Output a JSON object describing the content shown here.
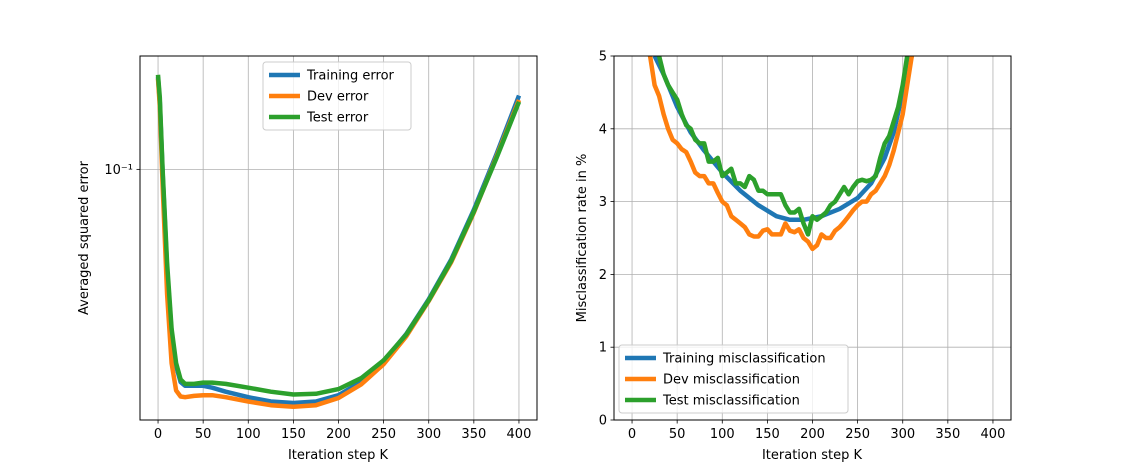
{
  "chart_data": [
    {
      "type": "line",
      "xlabel": "Iteration step K",
      "ylabel": "Averaged squared error",
      "yscale": "log",
      "xlim": [
        -20,
        420
      ],
      "ylim": [
        0.0175,
        0.22
      ],
      "xticks": [
        0,
        50,
        100,
        150,
        200,
        250,
        300,
        350,
        400
      ],
      "yticks": [
        {
          "value": 0.1,
          "label": "10⁻¹"
        }
      ],
      "grid": true,
      "legend": "top-center",
      "series": [
        {
          "name": "Training error",
          "color": "#1f77b4",
          "x": [
            0,
            2,
            5,
            10,
            15,
            20,
            25,
            30,
            40,
            50,
            60,
            75,
            100,
            125,
            150,
            175,
            200,
            225,
            250,
            275,
            300,
            325,
            350,
            375,
            400
          ],
          "y": [
            0.19,
            0.16,
            0.098,
            0.05,
            0.032,
            0.0255,
            0.0228,
            0.0222,
            0.0222,
            0.0222,
            0.0219,
            0.0213,
            0.0205,
            0.0199,
            0.0197,
            0.0199,
            0.0208,
            0.0228,
            0.0263,
            0.0318,
            0.0405,
            0.0535,
            0.0755,
            0.111,
            0.167
          ]
        },
        {
          "name": "Dev error",
          "color": "#ff7f0e",
          "x": [
            0,
            2,
            5,
            10,
            15,
            20,
            25,
            30,
            40,
            50,
            60,
            75,
            100,
            125,
            150,
            175,
            200,
            225,
            250,
            275,
            300,
            325,
            350,
            375,
            400
          ],
          "y": [
            0.188,
            0.155,
            0.09,
            0.042,
            0.026,
            0.0215,
            0.0206,
            0.0205,
            0.0207,
            0.0208,
            0.0208,
            0.0205,
            0.0199,
            0.0194,
            0.0192,
            0.0194,
            0.0204,
            0.0224,
            0.0258,
            0.0313,
            0.04,
            0.0525,
            0.074,
            0.109,
            0.162
          ]
        },
        {
          "name": "Test error",
          "color": "#2ca02c",
          "x": [
            0,
            2,
            5,
            10,
            15,
            20,
            25,
            30,
            40,
            50,
            60,
            75,
            100,
            125,
            150,
            175,
            200,
            225,
            250,
            275,
            300,
            325,
            350,
            375,
            400
          ],
          "y": [
            0.193,
            0.165,
            0.1,
            0.052,
            0.033,
            0.026,
            0.0232,
            0.0225,
            0.0225,
            0.0227,
            0.0227,
            0.0225,
            0.0219,
            0.0213,
            0.0209,
            0.021,
            0.0217,
            0.0234,
            0.0265,
            0.0317,
            0.0402,
            0.053,
            0.0745,
            0.108,
            0.16
          ]
        }
      ]
    },
    {
      "type": "line",
      "xlabel": "Iteration step K",
      "ylabel": "Misclassification rate in %",
      "xlim": [
        -20,
        420
      ],
      "ylim": [
        0,
        5
      ],
      "xticks": [
        0,
        50,
        100,
        150,
        200,
        250,
        300,
        350,
        400
      ],
      "yticks": [
        0,
        1,
        2,
        3,
        4,
        5
      ],
      "grid": true,
      "legend": "lower-left",
      "series": [
        {
          "name": "Training misclassification",
          "color": "#1f77b4",
          "x": [
            25,
            35,
            50,
            65,
            80,
            100,
            120,
            140,
            160,
            175,
            190,
            210,
            230,
            250,
            265,
            280,
            290,
            300,
            310
          ],
          "y": [
            5.0,
            4.75,
            4.3,
            3.95,
            3.7,
            3.4,
            3.15,
            2.95,
            2.8,
            2.75,
            2.75,
            2.8,
            2.9,
            3.05,
            3.25,
            3.6,
            3.95,
            4.5,
            5.0
          ]
        },
        {
          "name": "Dev misclassification",
          "color": "#ff7f0e",
          "x": [
            20,
            25,
            30,
            35,
            40,
            45,
            50,
            55,
            60,
            65,
            70,
            75,
            80,
            85,
            90,
            95,
            100,
            105,
            110,
            115,
            120,
            125,
            130,
            135,
            140,
            145,
            150,
            155,
            160,
            165,
            170,
            175,
            180,
            185,
            190,
            195,
            200,
            205,
            210,
            215,
            220,
            225,
            230,
            235,
            240,
            245,
            250,
            255,
            260,
            265,
            270,
            275,
            280,
            285,
            290,
            295,
            300,
            305,
            310
          ],
          "y": [
            5.0,
            4.6,
            4.45,
            4.2,
            4.0,
            3.85,
            3.8,
            3.72,
            3.68,
            3.55,
            3.4,
            3.35,
            3.35,
            3.25,
            3.25,
            3.12,
            3.0,
            2.95,
            2.8,
            2.75,
            2.7,
            2.65,
            2.55,
            2.52,
            2.52,
            2.6,
            2.62,
            2.55,
            2.55,
            2.55,
            2.7,
            2.6,
            2.58,
            2.62,
            2.5,
            2.45,
            2.35,
            2.4,
            2.55,
            2.5,
            2.5,
            2.6,
            2.65,
            2.72,
            2.8,
            2.88,
            2.95,
            3.0,
            3.0,
            3.1,
            3.15,
            3.25,
            3.35,
            3.5,
            3.7,
            3.95,
            4.2,
            4.6,
            5.0
          ]
        },
        {
          "name": "Test misclassification",
          "color": "#2ca02c",
          "x": [
            30,
            35,
            40,
            45,
            50,
            55,
            60,
            65,
            70,
            75,
            80,
            85,
            90,
            95,
            100,
            105,
            110,
            115,
            120,
            125,
            130,
            135,
            140,
            145,
            150,
            155,
            160,
            165,
            170,
            175,
            180,
            185,
            190,
            195,
            200,
            205,
            210,
            215,
            220,
            225,
            230,
            235,
            240,
            245,
            250,
            255,
            260,
            265,
            270,
            275,
            280,
            285,
            290,
            295,
            300,
            305
          ],
          "y": [
            5.0,
            4.75,
            4.6,
            4.5,
            4.4,
            4.2,
            4.05,
            4.0,
            3.85,
            3.8,
            3.8,
            3.55,
            3.55,
            3.6,
            3.35,
            3.4,
            3.45,
            3.25,
            3.25,
            3.2,
            3.35,
            3.3,
            3.15,
            3.15,
            3.1,
            3.1,
            3.1,
            3.1,
            2.95,
            2.85,
            2.85,
            2.9,
            2.7,
            2.55,
            2.8,
            2.75,
            2.8,
            2.85,
            2.95,
            3.0,
            3.1,
            3.2,
            3.1,
            3.2,
            3.28,
            3.3,
            3.28,
            3.3,
            3.35,
            3.6,
            3.8,
            3.9,
            4.1,
            4.3,
            4.6,
            5.0
          ]
        }
      ]
    }
  ]
}
